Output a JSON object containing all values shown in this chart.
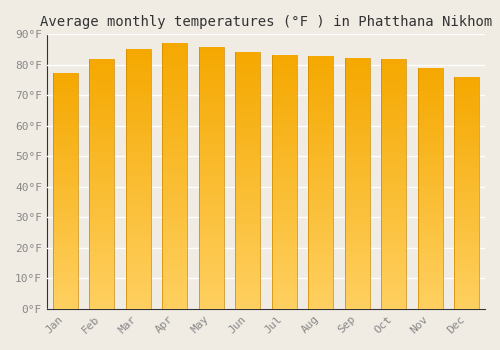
{
  "title": "Average monthly temperatures (°F ) in Phatthana Nikhom",
  "months": [
    "Jan",
    "Feb",
    "Mar",
    "Apr",
    "May",
    "Jun",
    "Jul",
    "Aug",
    "Sep",
    "Oct",
    "Nov",
    "Dec"
  ],
  "values": [
    77.2,
    81.9,
    85.3,
    87.1,
    85.8,
    84.1,
    83.1,
    82.8,
    82.2,
    81.9,
    78.8,
    75.9
  ],
  "bar_color_bottom": "#FFD060",
  "bar_color_top": "#F5A800",
  "bar_edge_color": "#CC8800",
  "ylim": [
    0,
    90
  ],
  "yticks": [
    0,
    10,
    20,
    30,
    40,
    50,
    60,
    70,
    80,
    90
  ],
  "ytick_labels": [
    "0°F",
    "10°F",
    "20°F",
    "30°F",
    "40°F",
    "50°F",
    "60°F",
    "70°F",
    "80°F",
    "90°F"
  ],
  "background_color": "#f0ece4",
  "plot_bg_color": "#f0ece4",
  "grid_color": "#ffffff",
  "title_fontsize": 10,
  "tick_fontsize": 8,
  "tick_color": "#888888",
  "spine_color": "#333333"
}
